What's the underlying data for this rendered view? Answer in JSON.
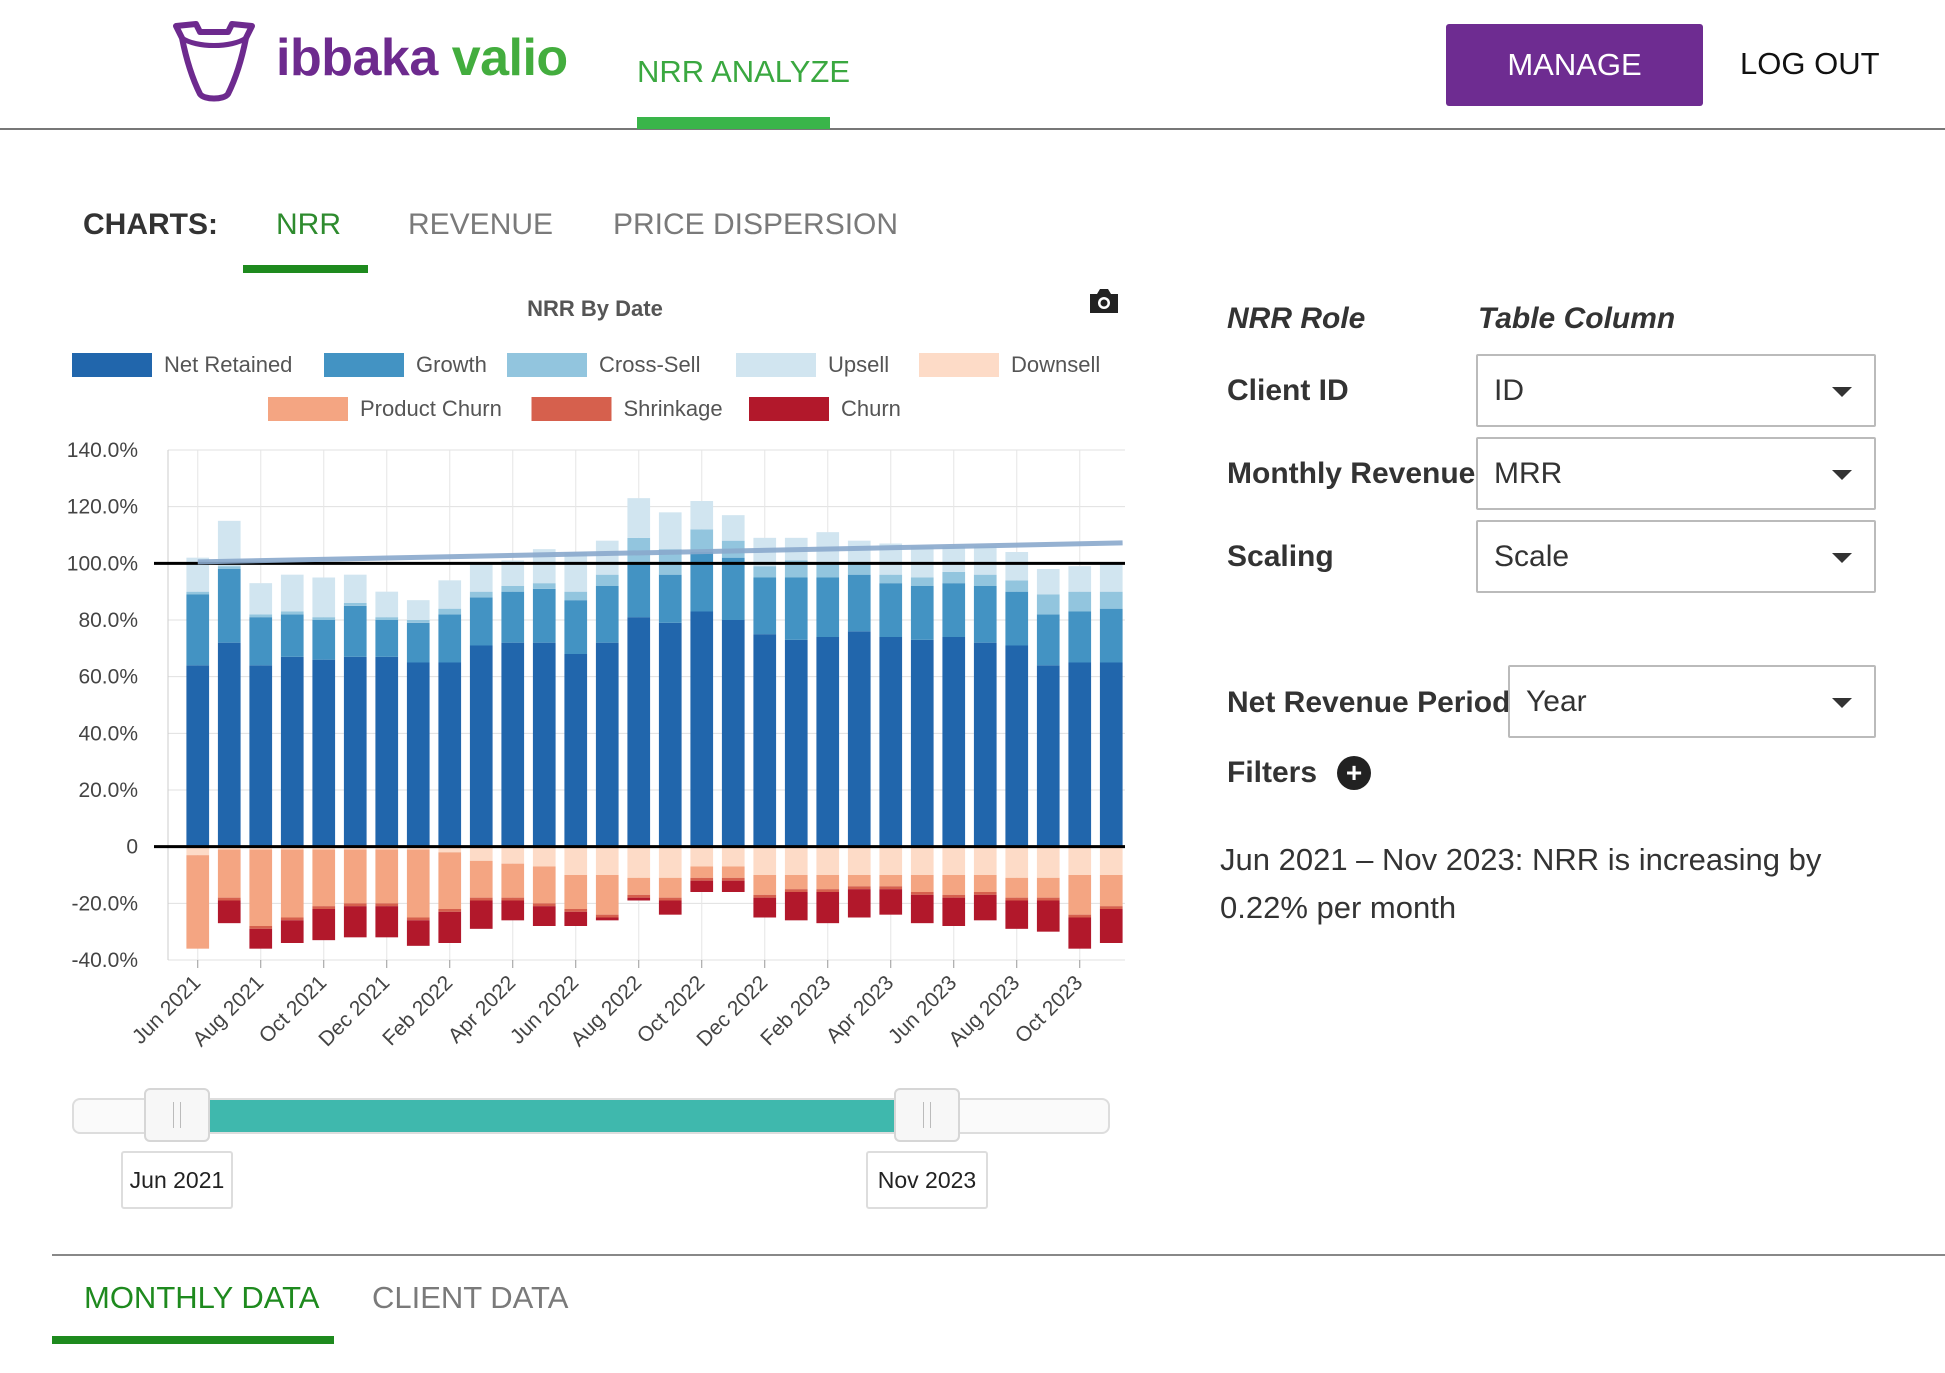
{
  "header": {
    "brand_part1": "ibbaka",
    "brand_part2": "valio",
    "nav_active": "NRR ANALYZE",
    "manage_label": "MANAGE",
    "logout_label": "LOG OUT"
  },
  "charts_tabs": {
    "label": "CHARTS:",
    "tabs": [
      {
        "label": "NRR",
        "active": true
      },
      {
        "label": "REVENUE",
        "active": false
      },
      {
        "label": "PRICE DISPERSION",
        "active": false
      }
    ]
  },
  "colors": {
    "net_retained": "#2166ac",
    "growth": "#4393c3",
    "cross_sell": "#92c5de",
    "upsell": "#d1e5f0",
    "downsell": "#fddbc7",
    "product_churn": "#f4a582",
    "shrinkage": "#d6604d",
    "churn": "#b2182b",
    "trend_line": "#89a9cc",
    "brand_purple": "#6e2c91",
    "brand_green": "#43ad3e"
  },
  "chart_data": {
    "type": "bar",
    "stacked": true,
    "title": "NRR By Date",
    "y_tick_labels": [
      "140.0%",
      "120.0%",
      "100.0%",
      "80.0%",
      "60.0%",
      "40.0%",
      "20.0%",
      "0",
      "-20.0%",
      "-40.0%"
    ],
    "ylim": [
      -40,
      140
    ],
    "x_tick_labels": [
      "Jun 2021",
      "Aug 2021",
      "Oct 2021",
      "Dec 2021",
      "Feb 2022",
      "Apr 2022",
      "Jun 2022",
      "Aug 2022",
      "Oct 2022",
      "Dec 2022",
      "Feb 2023",
      "Apr 2023",
      "Jun 2023",
      "Aug 2023",
      "Oct 2023"
    ],
    "categories": [
      "Jun 2021",
      "Jul 2021",
      "Aug 2021",
      "Sep 2021",
      "Oct 2021",
      "Nov 2021",
      "Dec 2021",
      "Jan 2022",
      "Feb 2022",
      "Mar 2022",
      "Apr 2022",
      "May 2022",
      "Jun 2022",
      "Jul 2022",
      "Aug 2022",
      "Sep 2022",
      "Oct 2022",
      "Nov 2022",
      "Dec 2022",
      "Jan 2023",
      "Feb 2023",
      "Mar 2023",
      "Apr 2023",
      "May 2023",
      "Jun 2023",
      "Jul 2023",
      "Aug 2023",
      "Sep 2023",
      "Oct 2023",
      "Nov 2023"
    ],
    "legend_position": "top",
    "series": [
      {
        "name": "Net Retained",
        "values": [
          64,
          72,
          64,
          67,
          66,
          67,
          67,
          65,
          65,
          71,
          72,
          72,
          68,
          72,
          81,
          79,
          83,
          80,
          75,
          73,
          74,
          76,
          74,
          73,
          74,
          72,
          71,
          64,
          65,
          65
        ]
      },
      {
        "name": "Growth",
        "values": [
          25,
          26,
          17,
          15,
          14,
          18,
          13,
          14,
          17,
          17,
          18,
          19,
          19,
          20,
          19,
          17,
          21,
          22,
          20,
          22,
          21,
          20,
          19,
          19,
          19,
          20,
          19,
          18,
          18,
          19
        ]
      },
      {
        "name": "Cross-Sell",
        "values": [
          1,
          1,
          1,
          1,
          1,
          1,
          1,
          1,
          2,
          2,
          2,
          2,
          3,
          4,
          9,
          9,
          8,
          6,
          4,
          6,
          5,
          4,
          3,
          3,
          4,
          4,
          4,
          7,
          7,
          6
        ]
      },
      {
        "name": "Upsell",
        "values": [
          12,
          16,
          11,
          13,
          14,
          10,
          9,
          7,
          10,
          10,
          9,
          12,
          14,
          12,
          14,
          13,
          10,
          9,
          10,
          8,
          11,
          8,
          11,
          11,
          9,
          10,
          10,
          9,
          9,
          10
        ]
      },
      {
        "name": "Downsell",
        "values": [
          -3,
          -1,
          -1,
          -1,
          -1,
          -1,
          -1,
          -1,
          -2,
          -5,
          -6,
          -7,
          -10,
          -10,
          -11,
          -11,
          -7,
          -7,
          -10,
          -10,
          -10,
          -10,
          -10,
          -10,
          -10,
          -10,
          -11,
          -11,
          -10,
          -10
        ]
      },
      {
        "name": "Product Churn",
        "values": [
          -33,
          -17,
          -27,
          -24,
          -20,
          -19,
          -19,
          -24,
          -20,
          -13,
          -12,
          -13,
          -12,
          -14,
          -6,
          -7,
          -4,
          -4,
          -7,
          -5,
          -5,
          -4,
          -4,
          -6,
          -7,
          -6,
          -7,
          -7,
          -14,
          -11
        ]
      },
      {
        "name": "Shrinkage",
        "values": [
          0,
          -1,
          -1,
          -1,
          -1,
          -1,
          -1,
          -1,
          -1,
          -1,
          -1,
          -1,
          -1,
          -1,
          -1,
          -1,
          -1,
          -1,
          -1,
          -1,
          -1,
          -1,
          -1,
          -1,
          -1,
          -1,
          -1,
          -1,
          -1,
          -1
        ]
      },
      {
        "name": "Churn",
        "values": [
          0,
          -8,
          -7,
          -8,
          -11,
          -11,
          -11,
          -9,
          -11,
          -10,
          -7,
          -7,
          -5,
          -1,
          -1,
          -5,
          -4,
          -4,
          -7,
          -10,
          -11,
          -10,
          -9,
          -10,
          -10,
          -9,
          -10,
          -11,
          -11,
          -12
        ]
      }
    ],
    "trend_line": {
      "start": 100.5,
      "end": 107.2
    },
    "reference_line": 100,
    "grid": true
  },
  "range": {
    "start_label": "Jun 2021",
    "end_label": "Nov 2023",
    "start_fraction": 0.1,
    "end_fraction": 0.84
  },
  "settings": {
    "role_header": "NRR Role",
    "column_header": "Table Column",
    "fields": [
      {
        "label": "Client ID",
        "value": "ID"
      },
      {
        "label": "Monthly Revenue",
        "value": "MRR"
      },
      {
        "label": "Scaling",
        "value": "Scale"
      }
    ],
    "period_label": "Net Revenue Period",
    "period_value": "Year",
    "filters_label": "Filters",
    "trend_text": "Jun 2021 – Nov 2023: NRR is increasing by 0.22% per month"
  },
  "bottom_tabs": [
    {
      "label": "MONTHLY DATA",
      "active": true
    },
    {
      "label": "CLIENT DATA",
      "active": false
    }
  ],
  "icons": {
    "logo": "ibbaka-logo-icon",
    "camera": "camera-icon",
    "filters_add": "plus-circle-icon",
    "dropdown": "caret-down-icon"
  }
}
